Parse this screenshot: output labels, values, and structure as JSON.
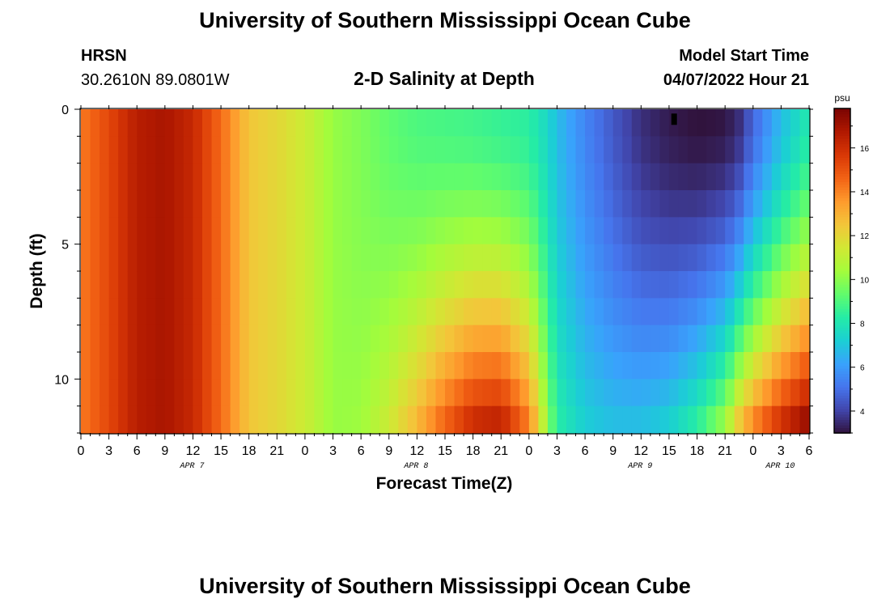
{
  "header": {
    "title": "University of Southern Mississippi Ocean Cube",
    "station": "HRSN",
    "coords": "30.2610N  89.0801W",
    "plot_title": "2-D Salinity at Depth",
    "start_label": "Model Start Time",
    "start_time": "04/07/2022 Hour 21"
  },
  "footer": {
    "title": "University of Southern Mississippi Ocean Cube"
  },
  "colors": {
    "colormap": [
      "#30123b",
      "#4145ab",
      "#4675ed",
      "#39a2fc",
      "#1bcfd4",
      "#24eca6",
      "#61fc6c",
      "#a4fc3b",
      "#d1e834",
      "#f3c63a",
      "#fe9b2d",
      "#f36315",
      "#d93806",
      "#b11901",
      "#7a0402"
    ]
  },
  "chart_data": {
    "type": "heatmap",
    "title": "2-D Salinity at Depth",
    "xlabel": "Forecast Time(Z)",
    "ylabel": "Depth (ft)",
    "colorbar_label": "psu",
    "x_ticks": [
      "0",
      "3",
      "6",
      "9",
      "12",
      "15",
      "18",
      "21",
      "0",
      "3",
      "6",
      "9",
      "12",
      "15",
      "18",
      "21",
      "0",
      "3",
      "6",
      "9",
      "12",
      "15",
      "18",
      "21",
      "0",
      "3",
      "6"
    ],
    "date_labels": [
      {
        "label": "APR 7",
        "hour": 12
      },
      {
        "label": "APR 8",
        "hour": 36
      },
      {
        "label": "APR 9",
        "hour": 60
      },
      {
        "label": "APR 10",
        "hour": 75
      }
    ],
    "x_range_hours": [
      0,
      78
    ],
    "y_ticks": [
      "0",
      "5",
      "10"
    ],
    "y_range_ft": [
      0,
      12
    ],
    "colorbar_ticks": [
      "4",
      "6",
      "8",
      "10",
      "12",
      "14",
      "16"
    ],
    "colorbar_range": [
      3,
      17.8
    ],
    "depth_levels_ft": [
      0.5,
      1.5,
      2.5,
      3.5,
      4.5,
      5.5,
      6.5,
      7.5,
      8.5,
      9.5,
      10.5,
      11.5
    ],
    "surface_profile": [
      {
        "hour": 0,
        "psu": 14.2
      },
      {
        "hour": 3,
        "psu": 15.3
      },
      {
        "hour": 6,
        "psu": 16.6
      },
      {
        "hour": 9,
        "psu": 16.9
      },
      {
        "hour": 12,
        "psu": 16.2
      },
      {
        "hour": 15,
        "psu": 14.5
      },
      {
        "hour": 18,
        "psu": 12.5
      },
      {
        "hour": 21,
        "psu": 12.0
      },
      {
        "hour": 24,
        "psu": 11.3
      },
      {
        "hour": 27,
        "psu": 10.2
      },
      {
        "hour": 30,
        "psu": 9.8
      },
      {
        "hour": 33,
        "psu": 9.3
      },
      {
        "hour": 36,
        "psu": 9.0
      },
      {
        "hour": 39,
        "psu": 8.9
      },
      {
        "hour": 42,
        "psu": 8.8
      },
      {
        "hour": 45,
        "psu": 8.6
      },
      {
        "hour": 48,
        "psu": 8.4
      },
      {
        "hour": 50,
        "psu": 7.5
      },
      {
        "hour": 51,
        "psu": 6.8
      },
      {
        "hour": 54,
        "psu": 5.5
      },
      {
        "hour": 57,
        "psu": 4.5
      },
      {
        "hour": 60,
        "psu": 3.6
      },
      {
        "hour": 63,
        "psu": 3.2
      },
      {
        "hour": 66,
        "psu": 3.0
      },
      {
        "hour": 69,
        "psu": 3.1
      },
      {
        "hour": 70.5,
        "psu": 3.6
      },
      {
        "hour": 72,
        "psu": 4.8
      },
      {
        "hour": 75,
        "psu": 6.8
      },
      {
        "hour": 78,
        "psu": 8.2
      }
    ],
    "bottom_profile": [
      {
        "hour": 0,
        "psu": 14.2
      },
      {
        "hour": 3,
        "psu": 15.3
      },
      {
        "hour": 6,
        "psu": 16.6
      },
      {
        "hour": 9,
        "psu": 16.9
      },
      {
        "hour": 12,
        "psu": 16.2
      },
      {
        "hour": 15,
        "psu": 14.5
      },
      {
        "hour": 18,
        "psu": 12.5
      },
      {
        "hour": 21,
        "psu": 12.0
      },
      {
        "hour": 24,
        "psu": 11.3
      },
      {
        "hour": 27,
        "psu": 10.2
      },
      {
        "hour": 30,
        "psu": 10.3
      },
      {
        "hour": 33,
        "psu": 11.3
      },
      {
        "hour": 36,
        "psu": 12.8
      },
      {
        "hour": 39,
        "psu": 14.6
      },
      {
        "hour": 42,
        "psu": 16.0
      },
      {
        "hour": 45,
        "psu": 16.3
      },
      {
        "hour": 48,
        "psu": 14.0
      },
      {
        "hour": 50,
        "psu": 10.0
      },
      {
        "hour": 51,
        "psu": 8.3
      },
      {
        "hour": 54,
        "psu": 7.2
      },
      {
        "hour": 57,
        "psu": 6.8
      },
      {
        "hour": 60,
        "psu": 6.8
      },
      {
        "hour": 63,
        "psu": 7.2
      },
      {
        "hour": 66,
        "psu": 8.3
      },
      {
        "hour": 69,
        "psu": 10.2
      },
      {
        "hour": 70.5,
        "psu": 12.3
      },
      {
        "hour": 72,
        "psu": 13.8
      },
      {
        "hour": 75,
        "psu": 15.8
      },
      {
        "hour": 78,
        "psu": 17.3
      }
    ],
    "marker": {
      "hour": 63.5,
      "depth_ft": 0.25
    },
    "grid": false
  }
}
